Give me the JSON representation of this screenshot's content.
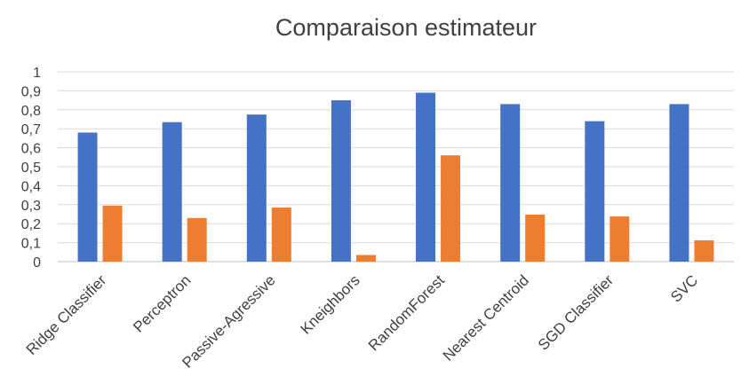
{
  "chart_data": {
    "type": "bar",
    "title": "Comparaison estimateur",
    "xlabel": "",
    "ylabel": "",
    "ylim": [
      0,
      1
    ],
    "yticks": [
      "0",
      "0,1",
      "0,2",
      "0,3",
      "0,4",
      "0,5",
      "0,6",
      "0,7",
      "0,8",
      "0,9",
      "1"
    ],
    "grid": true,
    "legend": "none",
    "categories": [
      "Ridge Classifier",
      "Perceptron",
      "Passive-Agressive",
      "Kneighbors",
      "RandomForest",
      "Nearest Centroid",
      "SGD Classifier",
      "SVC"
    ],
    "series": [
      {
        "values": [
          0.68,
          0.735,
          0.775,
          0.85,
          0.89,
          0.83,
          0.74,
          0.83
        ],
        "color": "#4472C4"
      },
      {
        "values": [
          0.295,
          0.23,
          0.285,
          0.035,
          0.56,
          0.248,
          0.238,
          0.112
        ],
        "color": "#ED7D31"
      }
    ]
  }
}
